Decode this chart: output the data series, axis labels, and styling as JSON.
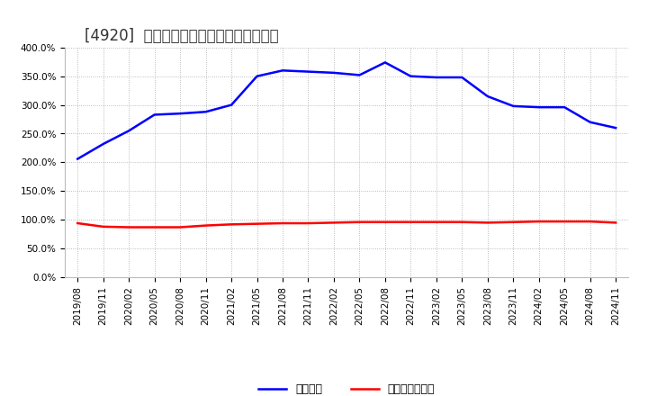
{
  "title": "[4920]  固定比率、固定長期適合率の推移",
  "x_labels": [
    "2019/08",
    "2019/11",
    "2020/02",
    "2020/05",
    "2020/08",
    "2020/11",
    "2021/02",
    "2021/05",
    "2021/08",
    "2021/11",
    "2022/02",
    "2022/05",
    "2022/08",
    "2022/11",
    "2023/02",
    "2023/05",
    "2023/08",
    "2023/11",
    "2024/02",
    "2024/05",
    "2024/08",
    "2024/11"
  ],
  "fixed_ratio": [
    206.0,
    232.0,
    255.0,
    283.0,
    285.0,
    288.0,
    300.0,
    350.0,
    360.0,
    358.0,
    356.0,
    352.0,
    374.0,
    350.0,
    348.0,
    348.0,
    315.0,
    298.0,
    296.0,
    296.0,
    270.0,
    260.0
  ],
  "fixed_long_ratio": [
    94.0,
    88.0,
    87.0,
    87.0,
    87.0,
    90.0,
    92.0,
    93.0,
    94.0,
    94.0,
    95.0,
    96.0,
    96.0,
    96.0,
    96.0,
    96.0,
    95.0,
    96.0,
    97.0,
    97.0,
    97.0,
    95.0
  ],
  "blue_color": "#0000ff",
  "red_color": "#ff0000",
  "bg_color": "#ffffff",
  "plot_bg_color": "#ffffff",
  "grid_color": "#aaaaaa",
  "ylim": [
    0,
    400
  ],
  "yticks": [
    0,
    50,
    100,
    150,
    200,
    250,
    300,
    350,
    400
  ],
  "legend_fixed": "固定比率",
  "legend_fixed_long": "固定長期適合率",
  "title_fontsize": 12,
  "tick_fontsize": 7.5,
  "legend_fontsize": 9
}
